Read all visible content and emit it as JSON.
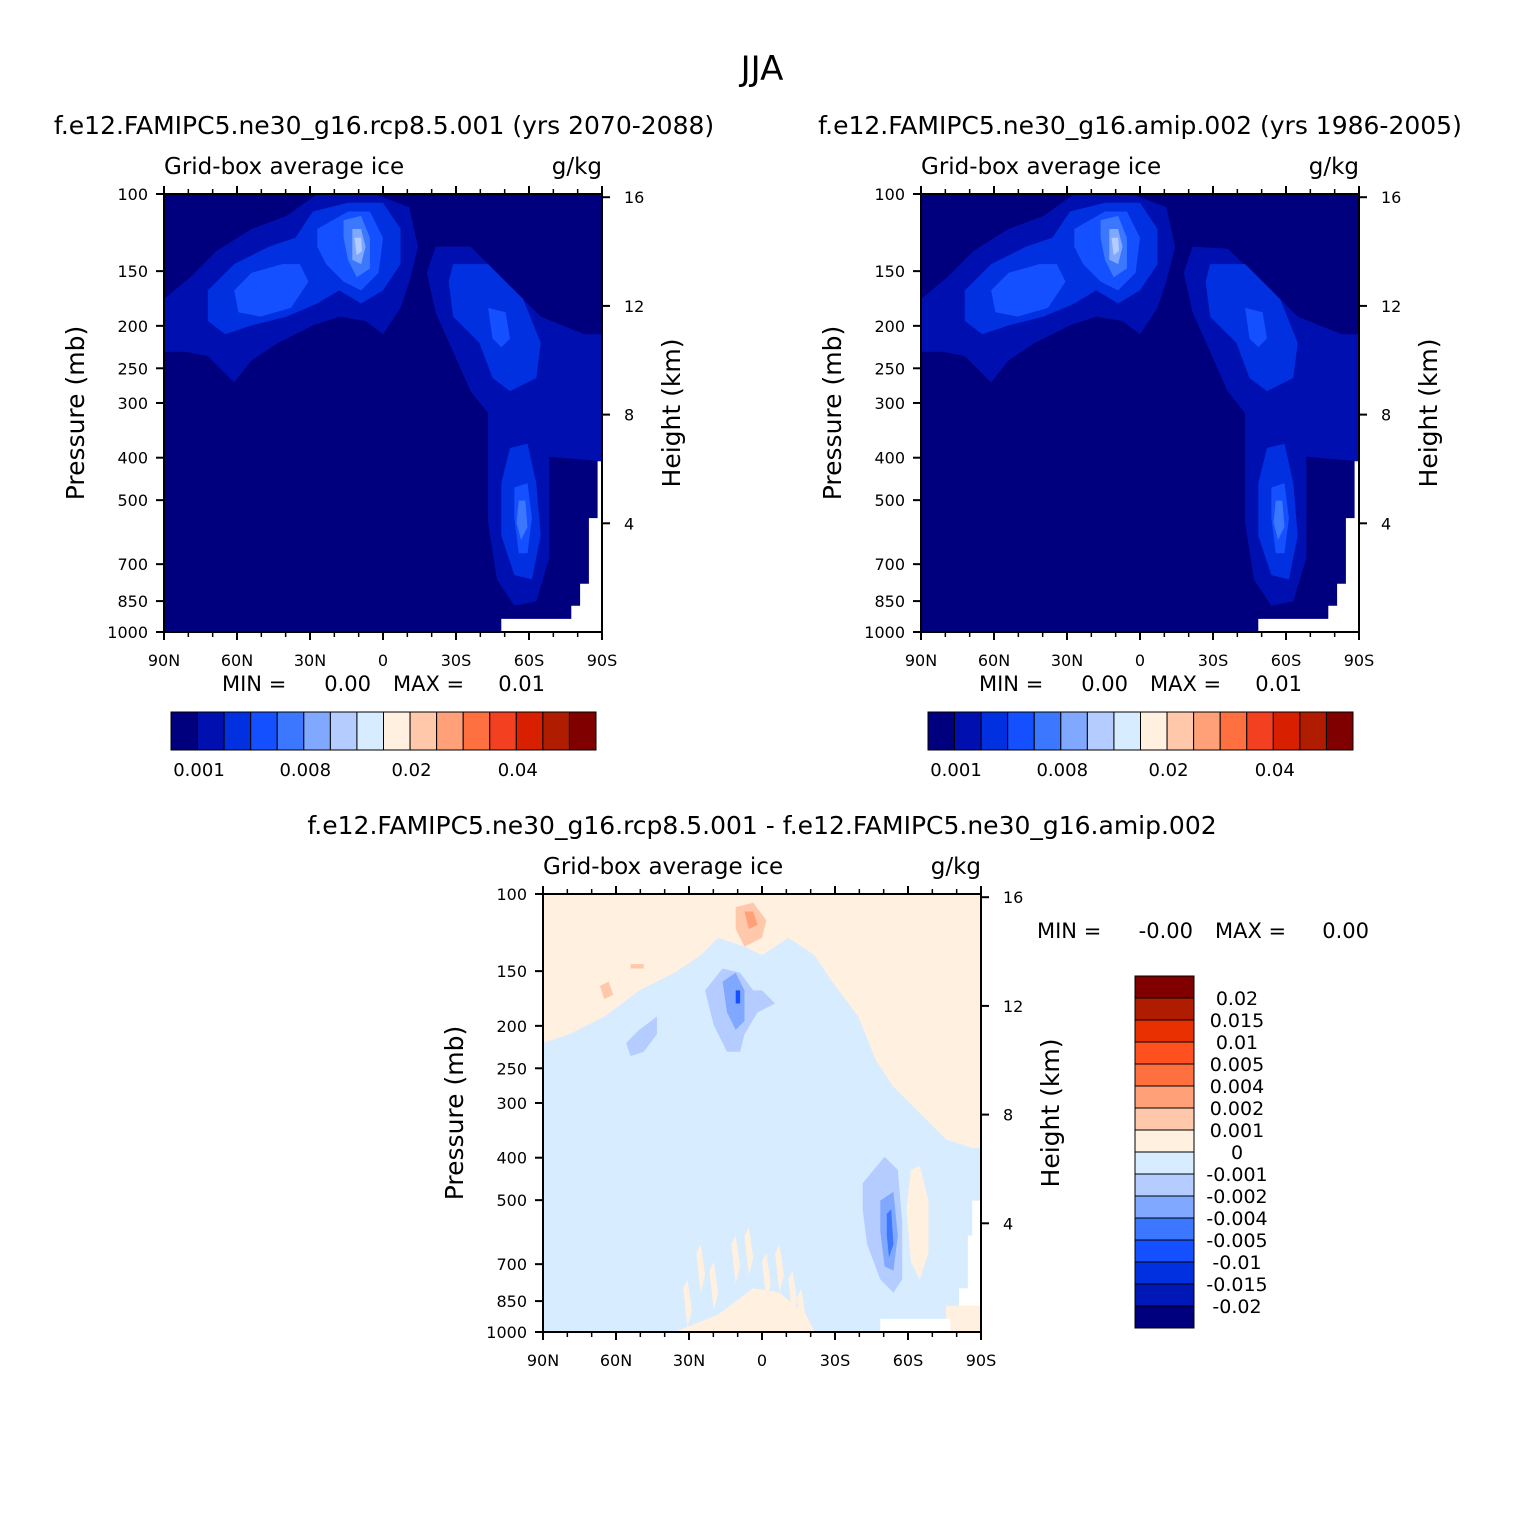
{
  "figure": {
    "title": "JJA"
  },
  "colors": {
    "abs_scale": [
      "#00007f",
      "#0010b0",
      "#0030e0",
      "#1450ff",
      "#3c78ff",
      "#80a8ff",
      "#b4ccff",
      "#d8ecff",
      "#fff0e0",
      "#ffc8aa",
      "#ffa078",
      "#ff7040",
      "#f24020",
      "#d82000",
      "#b01c00",
      "#800000"
    ],
    "diff_scale": [
      "#00007f",
      "#0018b8",
      "#0030e0",
      "#1450ff",
      "#3c78ff",
      "#80a8ff",
      "#b4ccff",
      "#d8ecff",
      "#fff0e0",
      "#ffc8aa",
      "#ffa078",
      "#ff7040",
      "#ff5020",
      "#e83000",
      "#b01c00",
      "#800000"
    ]
  },
  "chart_data": [
    {
      "type": "contour",
      "title": "f.e12.FAMIPC5.ne30_g16.rcp8.5.001 (yrs 2070-2088)",
      "left_label": "Grid-box average ice",
      "right_label": "g/kg",
      "ylabel": "Pressure (mb)",
      "ylabel_right": "Height (km)",
      "x_ticks": [
        "90N",
        "60N",
        "30N",
        "0",
        "30S",
        "60S",
        "90S"
      ],
      "y_ticks": [
        "100",
        "150",
        "200",
        "250",
        "300",
        "400",
        "500",
        "700",
        "850",
        "1000"
      ],
      "y_ticks_right": [
        "16",
        "12",
        "8",
        "4"
      ],
      "ylim": [
        1000,
        100
      ],
      "min_label": "MIN =",
      "min_value": "0.00",
      "max_label": "MAX =",
      "max_value": "0.01",
      "colorbar_labels": [
        "0.001",
        "0.008",
        "0.02",
        "0.04"
      ]
    },
    {
      "type": "contour",
      "title": "f.e12.FAMIPC5.ne30_g16.amip.002 (yrs 1986-2005)",
      "left_label": "Grid-box average ice",
      "right_label": "g/kg",
      "ylabel": "Pressure (mb)",
      "ylabel_right": "Height (km)",
      "x_ticks": [
        "90N",
        "60N",
        "30N",
        "0",
        "30S",
        "60S",
        "90S"
      ],
      "y_ticks": [
        "100",
        "150",
        "200",
        "250",
        "300",
        "400",
        "500",
        "700",
        "850",
        "1000"
      ],
      "y_ticks_right": [
        "16",
        "12",
        "8",
        "4"
      ],
      "ylim": [
        1000,
        100
      ],
      "min_label": "MIN =",
      "min_value": "0.00",
      "max_label": "MAX =",
      "max_value": "0.01",
      "colorbar_labels": [
        "0.001",
        "0.008",
        "0.02",
        "0.04"
      ]
    },
    {
      "type": "contour",
      "title": "f.e12.FAMIPC5.ne30_g16.rcp8.5.001 - f.e12.FAMIPC5.ne30_g16.amip.002",
      "left_label": "Grid-box average ice",
      "right_label": "g/kg",
      "ylabel": "Pressure (mb)",
      "ylabel_right": "Height (km)",
      "x_ticks": [
        "90N",
        "60N",
        "30N",
        "0",
        "30S",
        "60S",
        "90S"
      ],
      "y_ticks": [
        "100",
        "150",
        "200",
        "250",
        "300",
        "400",
        "500",
        "700",
        "850",
        "1000"
      ],
      "y_ticks_right": [
        "16",
        "12",
        "8",
        "4"
      ],
      "ylim": [
        1000,
        100
      ],
      "min_label": "MIN =",
      "min_value": "-0.00",
      "max_label": "MAX =",
      "max_value": "0.00",
      "colorbar_labels": [
        "0.02",
        "0.015",
        "0.01",
        "0.005",
        "0.004",
        "0.002",
        "0.001",
        "0",
        "-0.001",
        "-0.002",
        "-0.004",
        "-0.005",
        "-0.01",
        "-0.015",
        "-0.02"
      ]
    }
  ]
}
